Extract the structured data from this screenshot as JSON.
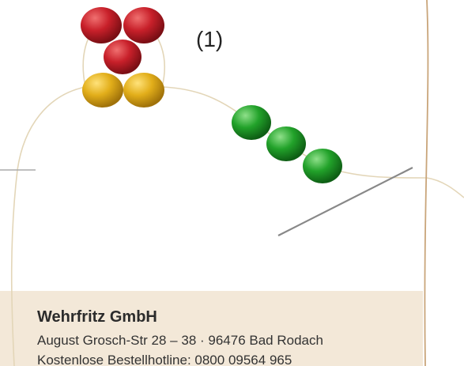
{
  "step_label": "(1)",
  "footer": {
    "company": "Wehrfritz GmbH",
    "address": "August Grosch-Str 28 – 38 · 96476 Bad Rodach",
    "hotline": "Kostenlose Bestellhotline: 0800 09564 965"
  }
}
